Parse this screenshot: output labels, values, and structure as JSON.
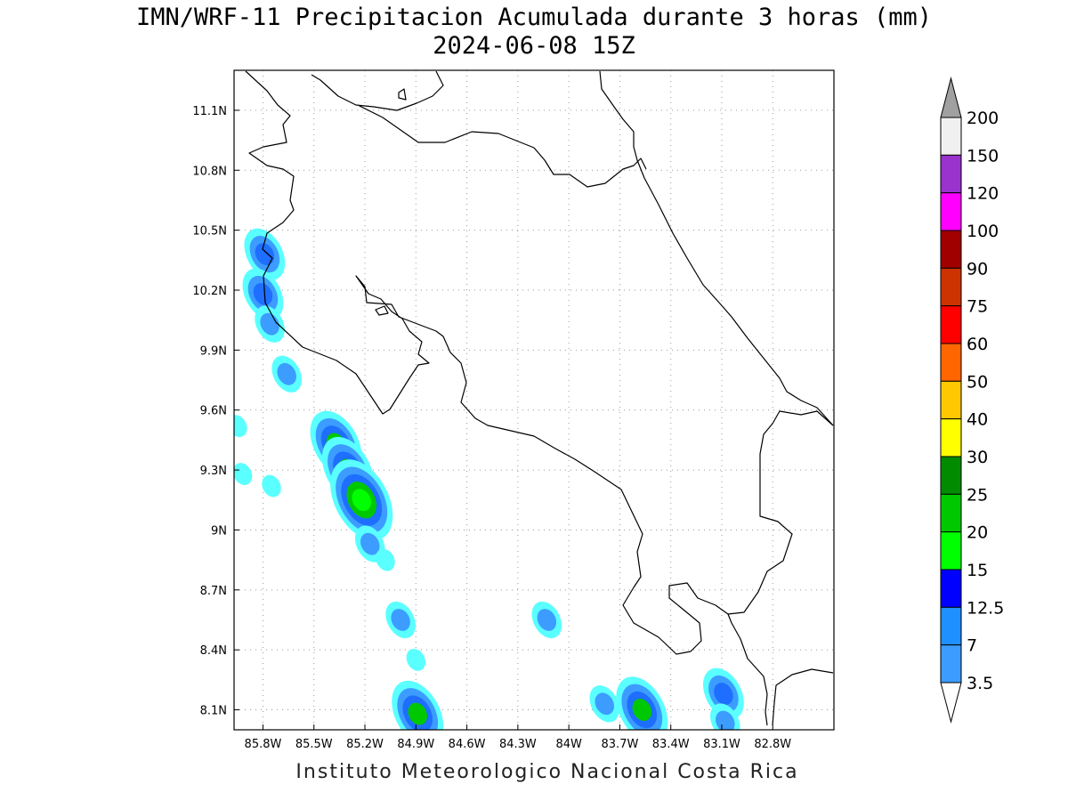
{
  "title": {
    "line1": "IMN/WRF-11 Precipitacion Acumulada durante 3 horas (mm)",
    "line2": "2024-06-08 15Z"
  },
  "credit": "Instituto Meteorologico Nacional Costa Rica",
  "map": {
    "lon_range": [
      -85.97,
      -82.44
    ],
    "lat_range": [
      8.0,
      11.3
    ],
    "grid": true,
    "lon_ticks": [
      {
        "value": -85.8,
        "label": "85.8W"
      },
      {
        "value": -85.5,
        "label": "85.5W"
      },
      {
        "value": -85.2,
        "label": "85.2W"
      },
      {
        "value": -84.9,
        "label": "84.9W"
      },
      {
        "value": -84.6,
        "label": "84.6W"
      },
      {
        "value": -84.3,
        "label": "84.3W"
      },
      {
        "value": -84.0,
        "label": "84W"
      },
      {
        "value": -83.7,
        "label": "83.7W"
      },
      {
        "value": -83.4,
        "label": "83.4W"
      },
      {
        "value": -83.1,
        "label": "83.1W"
      },
      {
        "value": -82.8,
        "label": "82.8W"
      }
    ],
    "lat_ticks": [
      {
        "value": 11.1,
        "label": "11.1N"
      },
      {
        "value": 10.8,
        "label": "10.8N"
      },
      {
        "value": 10.5,
        "label": "10.5N"
      },
      {
        "value": 10.2,
        "label": "10.2N"
      },
      {
        "value": 9.9,
        "label": "9.9N"
      },
      {
        "value": 9.6,
        "label": "9.6N"
      },
      {
        "value": 9.3,
        "label": "9.3N"
      },
      {
        "value": 9.0,
        "label": "9N"
      },
      {
        "value": 8.7,
        "label": "8.7N"
      },
      {
        "value": 8.4,
        "label": "8.4N"
      },
      {
        "value": 8.1,
        "label": "8.1N"
      }
    ],
    "precip_cells": [
      {
        "lon": -85.79,
        "lat": 10.38,
        "level": 3
      },
      {
        "lon": -85.8,
        "lat": 10.18,
        "level": 3
      },
      {
        "lon": -85.76,
        "lat": 10.03,
        "level": 2
      },
      {
        "lon": -85.66,
        "lat": 9.78,
        "level": 2
      },
      {
        "lon": -85.37,
        "lat": 9.43,
        "level": 4
      },
      {
        "lon": -85.3,
        "lat": 9.3,
        "level": 4
      },
      {
        "lon": -85.22,
        "lat": 9.15,
        "level": 5
      },
      {
        "lon": -85.95,
        "lat": 9.52,
        "level": 1
      },
      {
        "lon": -85.75,
        "lat": 9.22,
        "level": 1
      },
      {
        "lon": -85.92,
        "lat": 9.28,
        "level": 1
      },
      {
        "lon": -85.17,
        "lat": 8.93,
        "level": 2
      },
      {
        "lon": -85.08,
        "lat": 8.85,
        "level": 1
      },
      {
        "lon": -84.99,
        "lat": 8.55,
        "level": 2
      },
      {
        "lon": -84.9,
        "lat": 8.35,
        "level": 1
      },
      {
        "lon": -84.89,
        "lat": 8.08,
        "level": 4
      },
      {
        "lon": -84.13,
        "lat": 8.55,
        "level": 2
      },
      {
        "lon": -83.79,
        "lat": 8.13,
        "level": 2
      },
      {
        "lon": -83.57,
        "lat": 8.1,
        "level": 4
      },
      {
        "lon": -83.09,
        "lat": 8.18,
        "level": 3
      },
      {
        "lon": -83.08,
        "lat": 8.04,
        "level": 2
      }
    ]
  },
  "colorbar": {
    "top_color": "#a0a0a0",
    "bottom_color": "#ffffff",
    "levels": [
      {
        "label": "200",
        "color": "#f0f0f0"
      },
      {
        "label": "150",
        "color": "#9a32cd"
      },
      {
        "label": "120",
        "color": "#ff00ff"
      },
      {
        "label": "100",
        "color": "#a00000"
      },
      {
        "label": "90",
        "color": "#cd3300"
      },
      {
        "label": "75",
        "color": "#ff0000"
      },
      {
        "label": "60",
        "color": "#ff6600"
      },
      {
        "label": "50",
        "color": "#ffc800"
      },
      {
        "label": "40",
        "color": "#ffff00"
      },
      {
        "label": "30",
        "color": "#008b00"
      },
      {
        "label": "25",
        "color": "#00c800"
      },
      {
        "label": "20",
        "color": "#00ff00"
      },
      {
        "label": "15",
        "color": "#0000ff"
      },
      {
        "label": "12.5",
        "color": "#1e90ff"
      },
      {
        "label": "7",
        "color": "#3c9cff"
      },
      {
        "label": "3.5",
        "color": "#5affff"
      }
    ],
    "precip_palette": [
      "#5affff",
      "#3c9cff",
      "#1e6eff",
      "#00c800",
      "#00ff00"
    ]
  }
}
